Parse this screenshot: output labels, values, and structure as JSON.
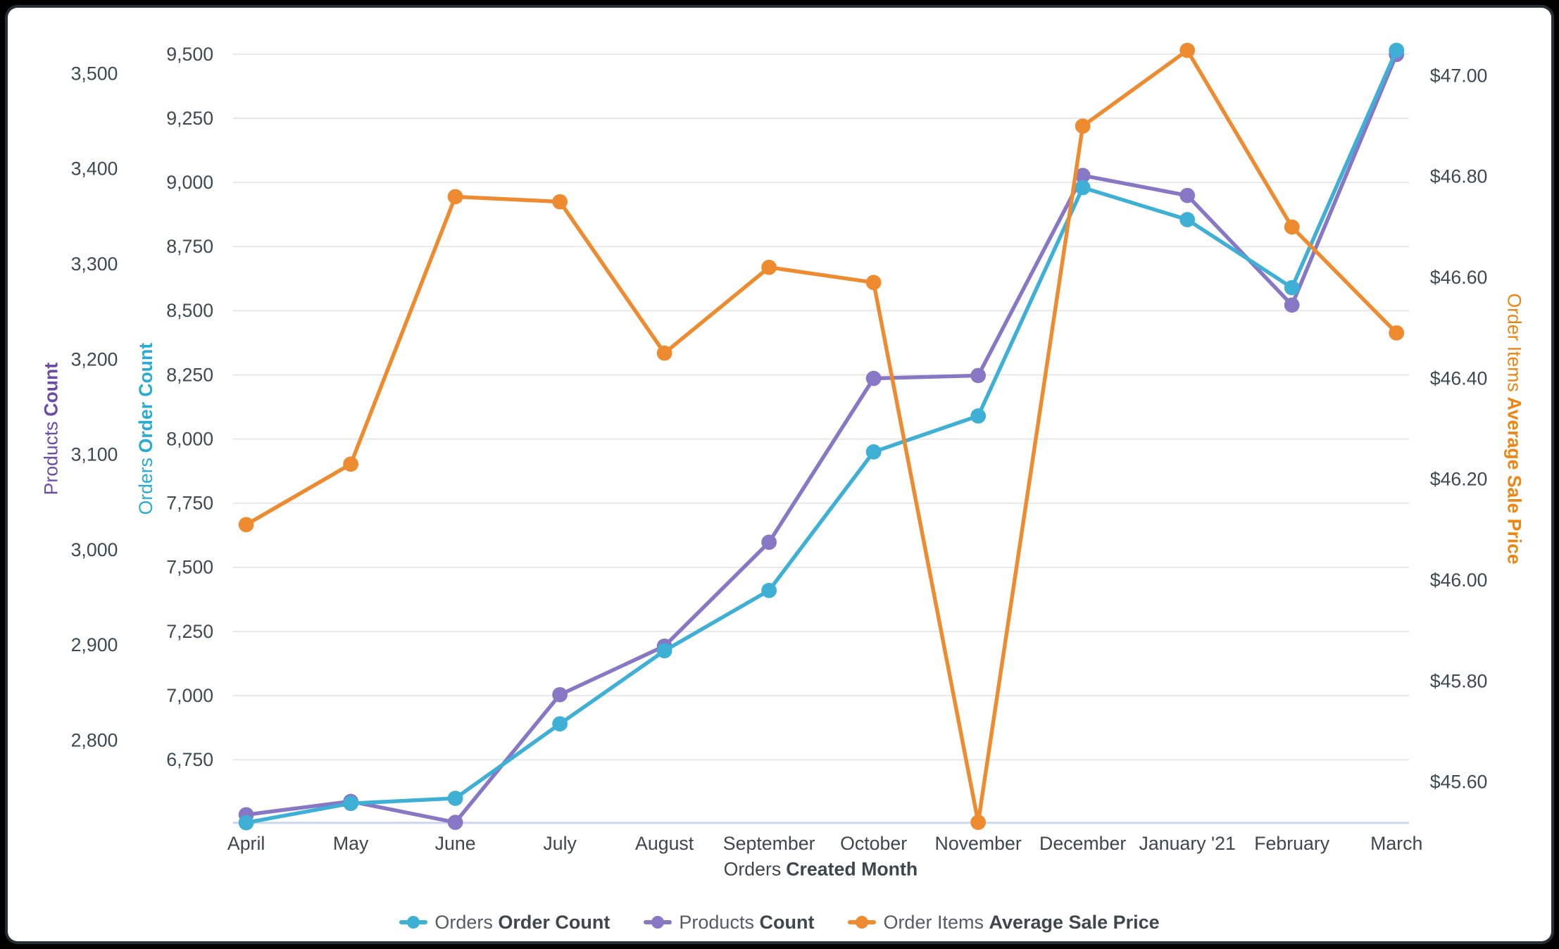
{
  "frame": {
    "background": "#000000",
    "card_background": "#ffffff"
  },
  "chart_data": {
    "type": "line",
    "grid": "horizontal",
    "legend_position": "bottom",
    "categories": [
      "April",
      "May",
      "June",
      "July",
      "August",
      "September",
      "October",
      "November",
      "December",
      "January '21",
      "February",
      "March"
    ],
    "x_axis": {
      "title_prefix": "Orders",
      "title_bold": "Created Month"
    },
    "axes": {
      "products": {
        "title_prefix": "Products",
        "title_bold": "Count",
        "label_color": "#6c4ba6",
        "tick_labels": [
          "3,500",
          "3,400",
          "3,300",
          "3,200",
          "3,100",
          "3,000",
          "2,900",
          "2,800"
        ],
        "tick_values": [
          3500,
          3400,
          3300,
          3200,
          3100,
          3000,
          2900,
          2800
        ]
      },
      "orders": {
        "title_prefix": "Orders",
        "title_bold": "Order Count",
        "label_color": "#29abd3",
        "tick_labels": [
          "9,500",
          "9,250",
          "9,000",
          "8,750",
          "8,500",
          "8,250",
          "8,000",
          "7,750",
          "7,500",
          "7,250",
          "7,000",
          "6,750"
        ],
        "tick_values": [
          9500,
          9250,
          9000,
          8750,
          8500,
          8250,
          8000,
          7750,
          7500,
          7250,
          7000,
          6750
        ]
      },
      "price": {
        "title_prefix": "Order Items",
        "title_bold": "Average Sale Price",
        "label_color": "#ec8512",
        "tick_labels": [
          "$47.00",
          "$46.80",
          "$46.60",
          "$46.40",
          "$46.20",
          "$46.00",
          "$45.80",
          "$45.60"
        ],
        "tick_values": [
          47.0,
          46.8,
          46.6,
          46.4,
          46.2,
          46.0,
          45.8,
          45.6
        ]
      }
    },
    "series": [
      {
        "id": "orders",
        "axis": "orders",
        "color": "#3eb0d5",
        "label_prefix": "Orders",
        "label_bold": "Order Count",
        "values": [
          6505,
          6580,
          6600,
          6890,
          7175,
          7410,
          7950,
          8090,
          8980,
          8855,
          8590,
          9515
        ]
      },
      {
        "id": "products",
        "axis": "products",
        "color": "#8777c4",
        "label_prefix": "Products",
        "label_bold": "Count",
        "values": [
          2722,
          2736,
          2714,
          2848,
          2899,
          3008,
          3180,
          3183,
          3393,
          3372,
          3257,
          3520
        ]
      },
      {
        "id": "price",
        "axis": "price",
        "color": "#ee8b2e",
        "label_prefix": "Order Items",
        "label_bold": "Average Sale Price",
        "values": [
          46.11,
          46.23,
          46.76,
          46.75,
          46.45,
          46.62,
          46.59,
          45.52,
          46.9,
          47.05,
          46.7,
          46.49
        ]
      }
    ],
    "legend": [
      {
        "prefix": "Orders",
        "bold": "Order Count"
      },
      {
        "prefix": "Products",
        "bold": "Count"
      },
      {
        "prefix": "Order Items",
        "bold": "Average Sale Price"
      }
    ]
  }
}
